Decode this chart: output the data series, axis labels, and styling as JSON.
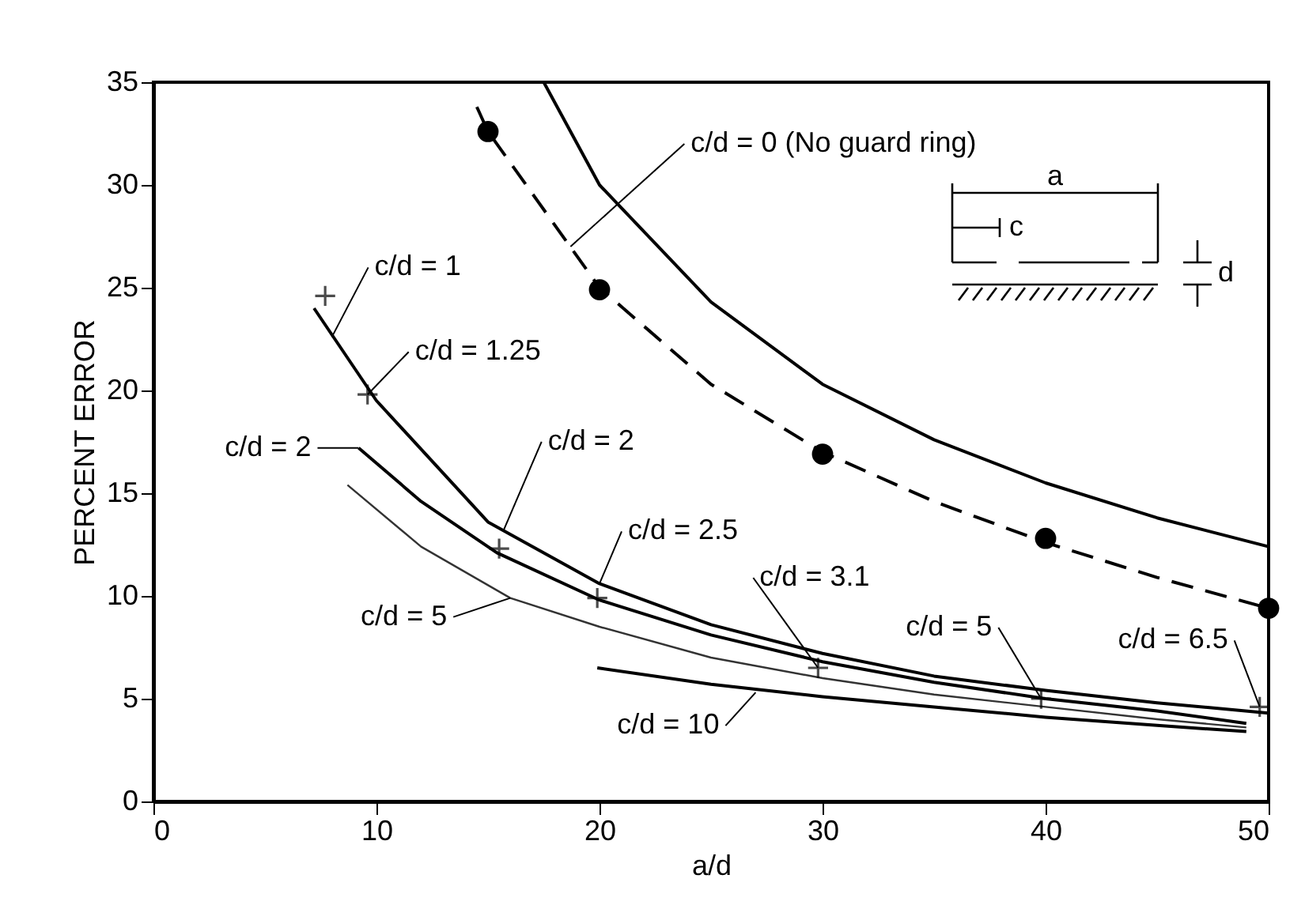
{
  "chart_data": {
    "type": "line",
    "xlabel": "a/d",
    "ylabel": "PERCENT ERROR",
    "xlim": [
      0,
      50
    ],
    "xticks": [
      0,
      10,
      20,
      30,
      40,
      50
    ],
    "ylim": [
      0,
      35
    ],
    "yticks": [
      0,
      5,
      10,
      15,
      20,
      25,
      30,
      35
    ],
    "grid": false,
    "series": [
      {
        "line_style": "solid",
        "color": "#000000",
        "x": [
          17.5,
          20,
          25,
          30,
          35,
          40,
          45,
          50
        ],
        "values": [
          35,
          30,
          24.3,
          20.3,
          17.6,
          15.5,
          13.8,
          12.4
        ]
      },
      {
        "line_style": "dashed",
        "color": "#000000",
        "x": [
          14.5,
          15,
          20,
          25,
          30,
          35,
          40,
          45,
          50
        ],
        "values": [
          33.8,
          32.6,
          25,
          20.3,
          17,
          14.6,
          12.6,
          10.9,
          9.4
        ]
      },
      {
        "line_style": "solid",
        "color": "#000000",
        "x": [
          7.2,
          10,
          15,
          20,
          25,
          30,
          35,
          40,
          45,
          50
        ],
        "values": [
          24,
          19.5,
          13.6,
          10.6,
          8.6,
          7.2,
          6.1,
          5.4,
          4.8,
          4.3
        ]
      },
      {
        "line_style": "solid",
        "color": "#000000",
        "x": [
          9.2,
          12,
          15.4,
          20,
          25,
          30,
          35,
          40,
          45,
          49
        ],
        "values": [
          17.2,
          14.6,
          12.1,
          9.8,
          8.1,
          6.8,
          5.8,
          5.0,
          4.4,
          3.8
        ]
      },
      {
        "line_style": "solid",
        "color": "#333333",
        "x": [
          8.7,
          12,
          16,
          20,
          25,
          30,
          35,
          40,
          45,
          49
        ],
        "values": [
          15.4,
          12.4,
          9.9,
          8.5,
          7.0,
          6.0,
          5.2,
          4.6,
          4.0,
          3.6
        ]
      },
      {
        "line_style": "solid",
        "color": "#000000",
        "x": [
          19.9,
          25,
          30,
          35,
          40,
          45,
          49
        ],
        "values": [
          6.5,
          5.7,
          5.1,
          4.6,
          4.1,
          3.7,
          3.4
        ]
      },
      {
        "type": "scatter",
        "marker": "circle",
        "color": "#000000",
        "x": [
          15,
          20,
          30,
          40,
          50
        ],
        "values": [
          32.6,
          24.9,
          16.9,
          12.8,
          9.4
        ]
      },
      {
        "type": "scatter",
        "marker": "cross",
        "color": "#000000",
        "x": [
          7.7,
          9.6,
          15.5,
          19.9,
          29.8,
          39.8,
          49.6
        ],
        "values": [
          24.6,
          19.8,
          12.3,
          9.9,
          6.5,
          5.0,
          4.6
        ]
      }
    ],
    "annotations": [
      {
        "text": "c/d = 0 (No guard ring)",
        "x": 18.7,
        "y": 27.0
      },
      {
        "text": "c/d = 1",
        "x": 8.0,
        "y": 22.6
      },
      {
        "text": "c/d = 1.25",
        "x": 9.6,
        "y": 19.8
      },
      {
        "text": "c/d = 2",
        "x": 9.2,
        "y": 17.2
      },
      {
        "text": "c/d = 2",
        "x": 15.7,
        "y": 13.2
      },
      {
        "text": "c/d = 2.5",
        "x": 20,
        "y": 10.6
      },
      {
        "text": "c/d = 3.1",
        "x": 29.8,
        "y": 6.5
      },
      {
        "text": "c/d = 5",
        "x": 16,
        "y": 9.9
      },
      {
        "text": "c/d = 10",
        "x": 27,
        "y": 5.3
      },
      {
        "text": "c/d = 5",
        "x": 39.8,
        "y": 5.0
      },
      {
        "text": "c/d = 6.5",
        "x": 49.6,
        "y": 4.6
      },
      "a",
      "c",
      "d"
    ]
  }
}
